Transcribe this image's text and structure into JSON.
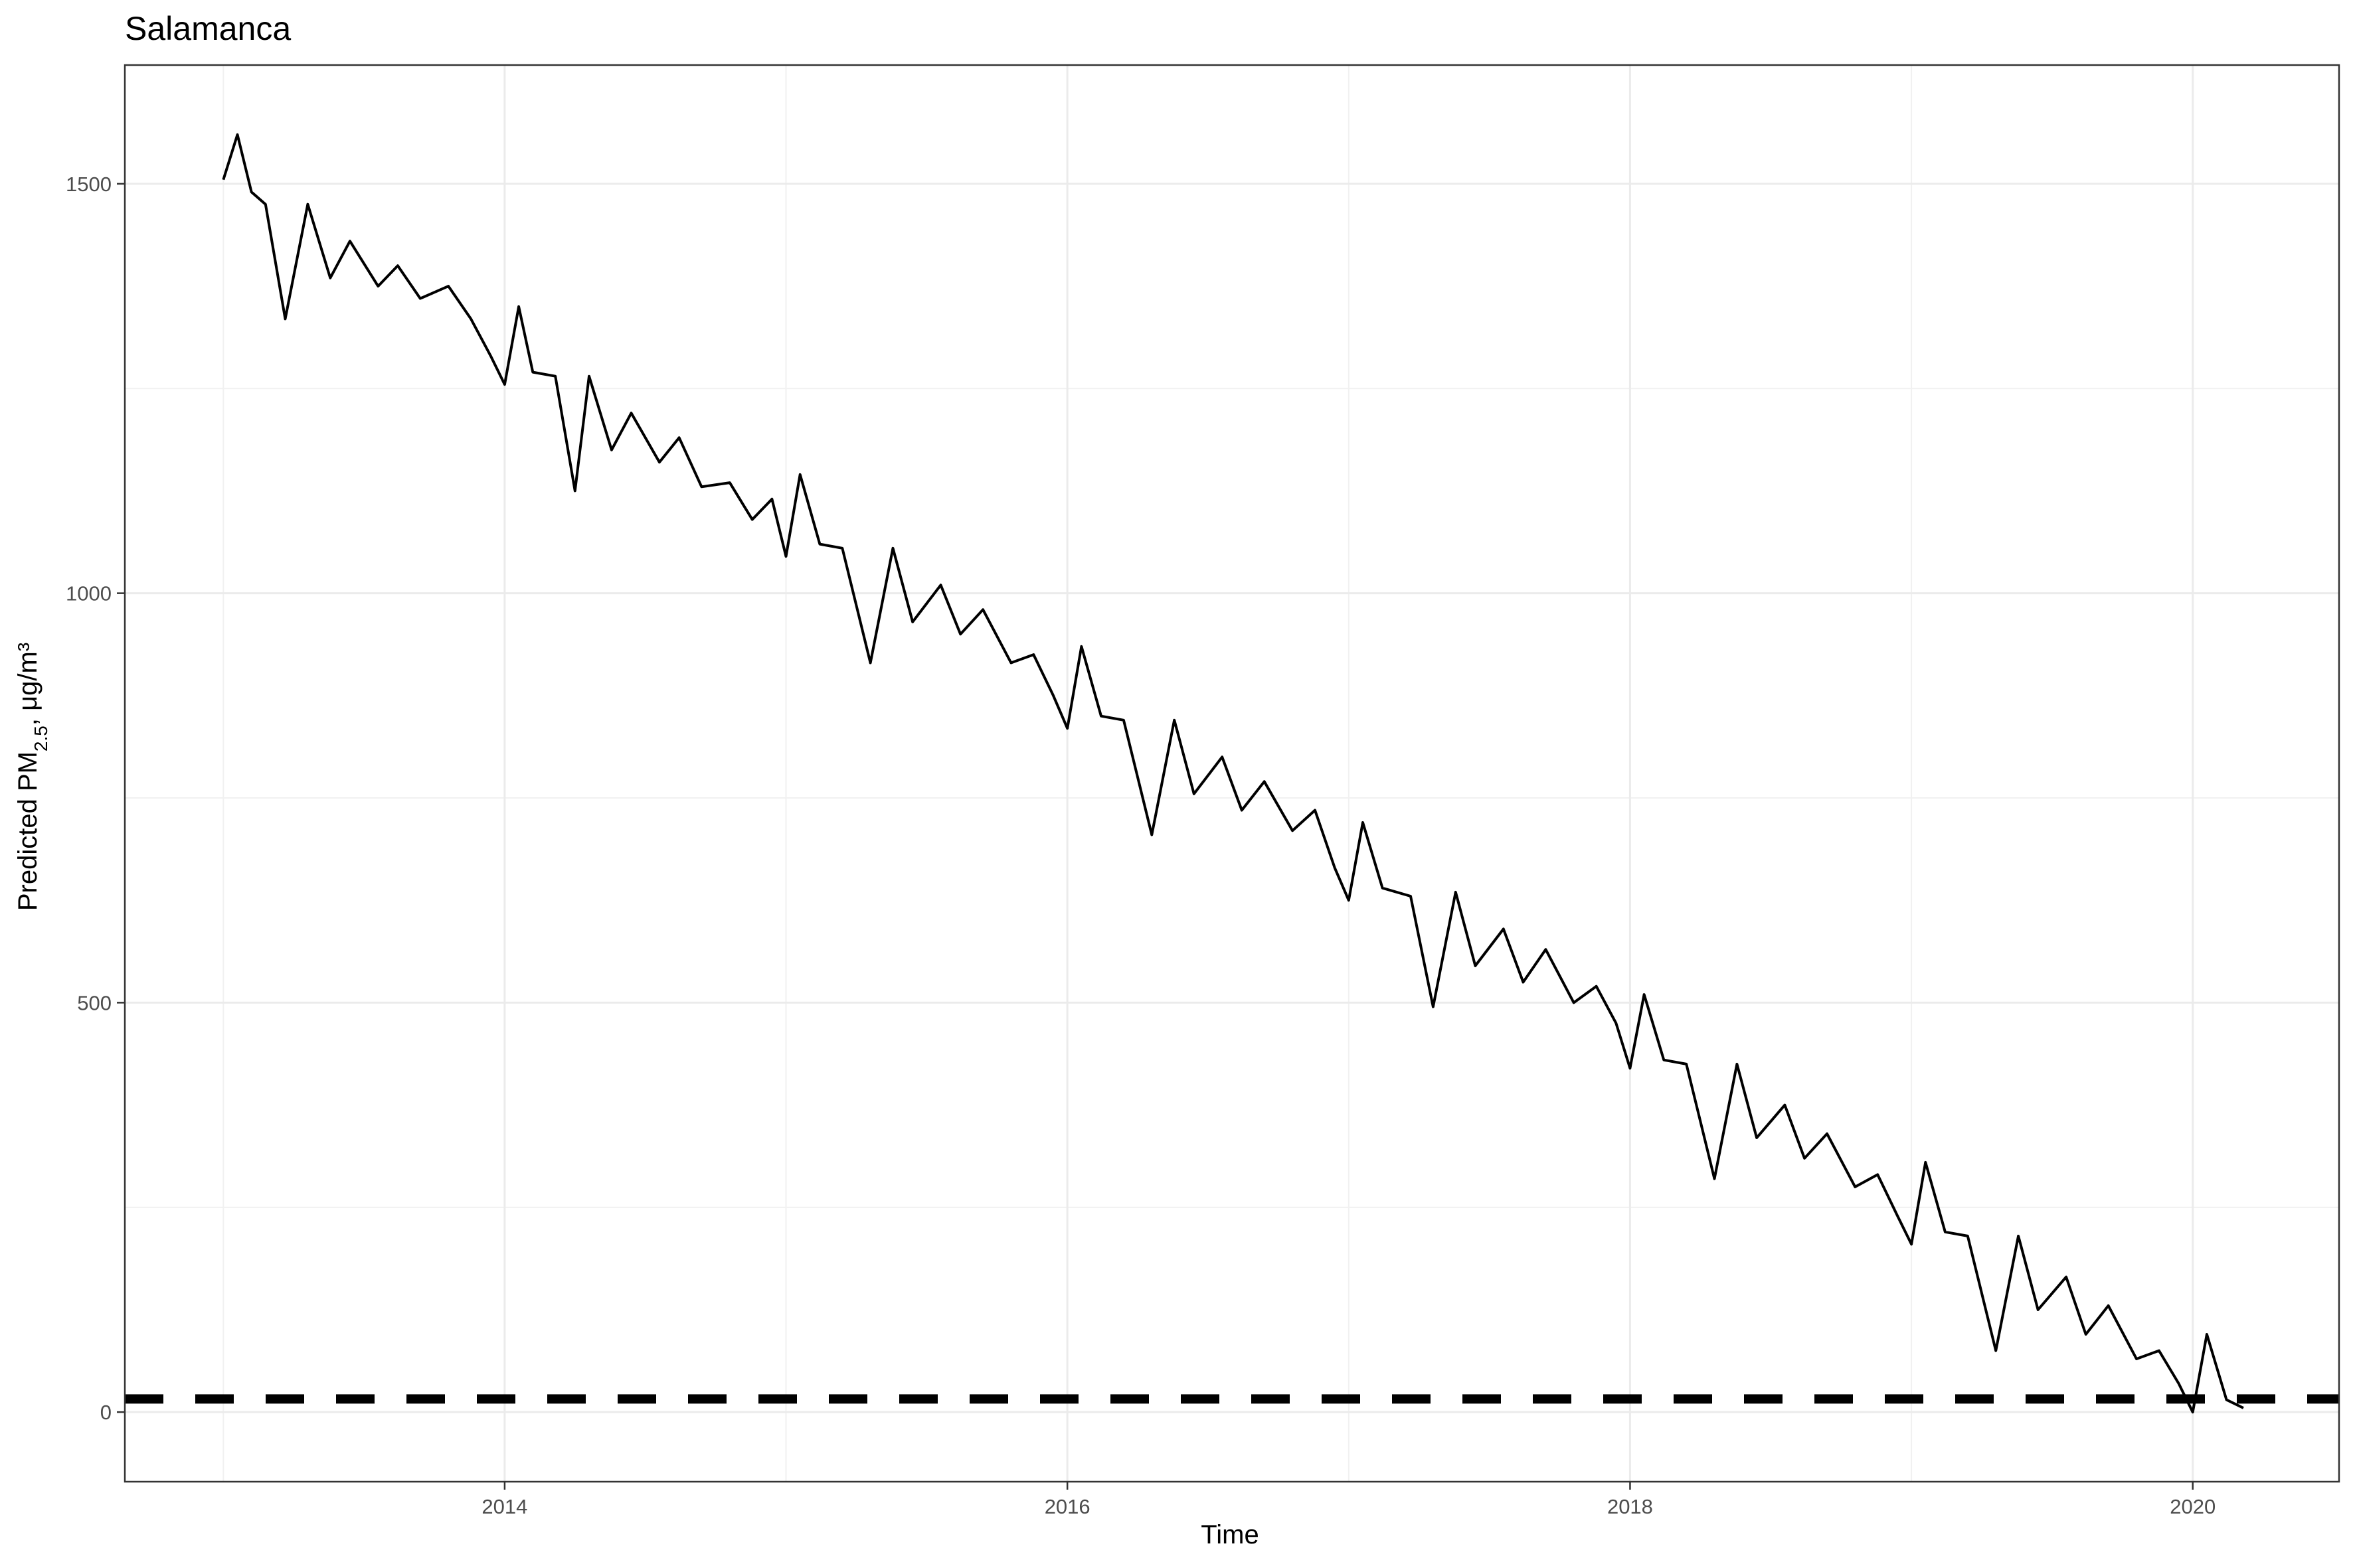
{
  "chart_data": {
    "type": "line",
    "title": "Salamanca",
    "xlabel": "Time",
    "ylabel": {
      "main": "Predicted PM",
      "subscript": "2.5",
      "unit": ", μg/m³"
    },
    "x_axis": {
      "unit": "year",
      "range": [
        2012.65,
        2020.52
      ],
      "ticks": [
        2014,
        2016,
        2018,
        2020
      ],
      "tick_labels": [
        "2014",
        "2016",
        "2018",
        "2020"
      ]
    },
    "y_axis": {
      "range": [
        -85,
        1645
      ],
      "ticks": [
        0,
        500,
        1000,
        1500
      ],
      "tick_labels": [
        "0",
        "500",
        "1000",
        "1500"
      ],
      "minor_ticks": [
        250,
        750,
        1250
      ]
    },
    "grid": true,
    "reference_line": {
      "y": 16,
      "style": "dashed",
      "color": "#000000"
    },
    "series": [
      {
        "color": "#000000",
        "x": [
          2013.0,
          2013.05,
          2013.1,
          2013.15,
          2013.22,
          2013.3,
          2013.38,
          2013.45,
          2013.55,
          2013.62,
          2013.7,
          2013.8,
          2013.88,
          2013.95,
          2014.0,
          2014.05,
          2014.1,
          2014.18,
          2014.25,
          2014.3,
          2014.38,
          2014.45,
          2014.55,
          2014.62,
          2014.7,
          2014.8,
          2014.88,
          2014.95,
          2015.0,
          2015.05,
          2015.12,
          2015.2,
          2015.3,
          2015.38,
          2015.45,
          2015.55,
          2015.62,
          2015.7,
          2015.8,
          2015.88,
          2015.95,
          2016.0,
          2016.05,
          2016.12,
          2016.2,
          2016.3,
          2016.38,
          2016.45,
          2016.55,
          2016.62,
          2016.7,
          2016.8,
          2016.88,
          2016.95,
          2017.0,
          2017.05,
          2017.12,
          2017.22,
          2017.3,
          2017.38,
          2017.45,
          2017.55,
          2017.62,
          2017.7,
          2017.8,
          2017.88,
          2017.95,
          2018.0,
          2018.05,
          2018.12,
          2018.2,
          2018.3,
          2018.38,
          2018.45,
          2018.55,
          2018.62,
          2018.7,
          2018.8,
          2018.88,
          2018.95,
          2019.0,
          2019.05,
          2019.12,
          2019.2,
          2019.3,
          2019.38,
          2019.45,
          2019.55,
          2019.62,
          2019.7,
          2019.8,
          2019.88,
          2019.95,
          2020.0,
          2020.05,
          2020.12,
          2020.18
        ],
        "y": [
          1505,
          1560,
          1490,
          1475,
          1335,
          1475,
          1385,
          1430,
          1375,
          1400,
          1360,
          1375,
          1335,
          1290,
          1255,
          1350,
          1270,
          1265,
          1125,
          1265,
          1175,
          1220,
          1160,
          1190,
          1130,
          1135,
          1090,
          1115,
          1045,
          1145,
          1060,
          1055,
          915,
          1055,
          965,
          1010,
          950,
          980,
          915,
          925,
          875,
          835,
          935,
          850,
          845,
          705,
          845,
          755,
          800,
          735,
          770,
          710,
          735,
          665,
          625,
          720,
          640,
          630,
          495,
          635,
          545,
          590,
          525,
          565,
          500,
          520,
          475,
          420,
          510,
          430,
          425,
          285,
          425,
          335,
          375,
          310,
          340,
          275,
          290,
          240,
          205,
          305,
          220,
          215,
          75,
          215,
          125,
          165,
          95,
          130,
          65,
          75,
          35,
          0,
          95,
          15,
          5
        ]
      }
    ]
  }
}
